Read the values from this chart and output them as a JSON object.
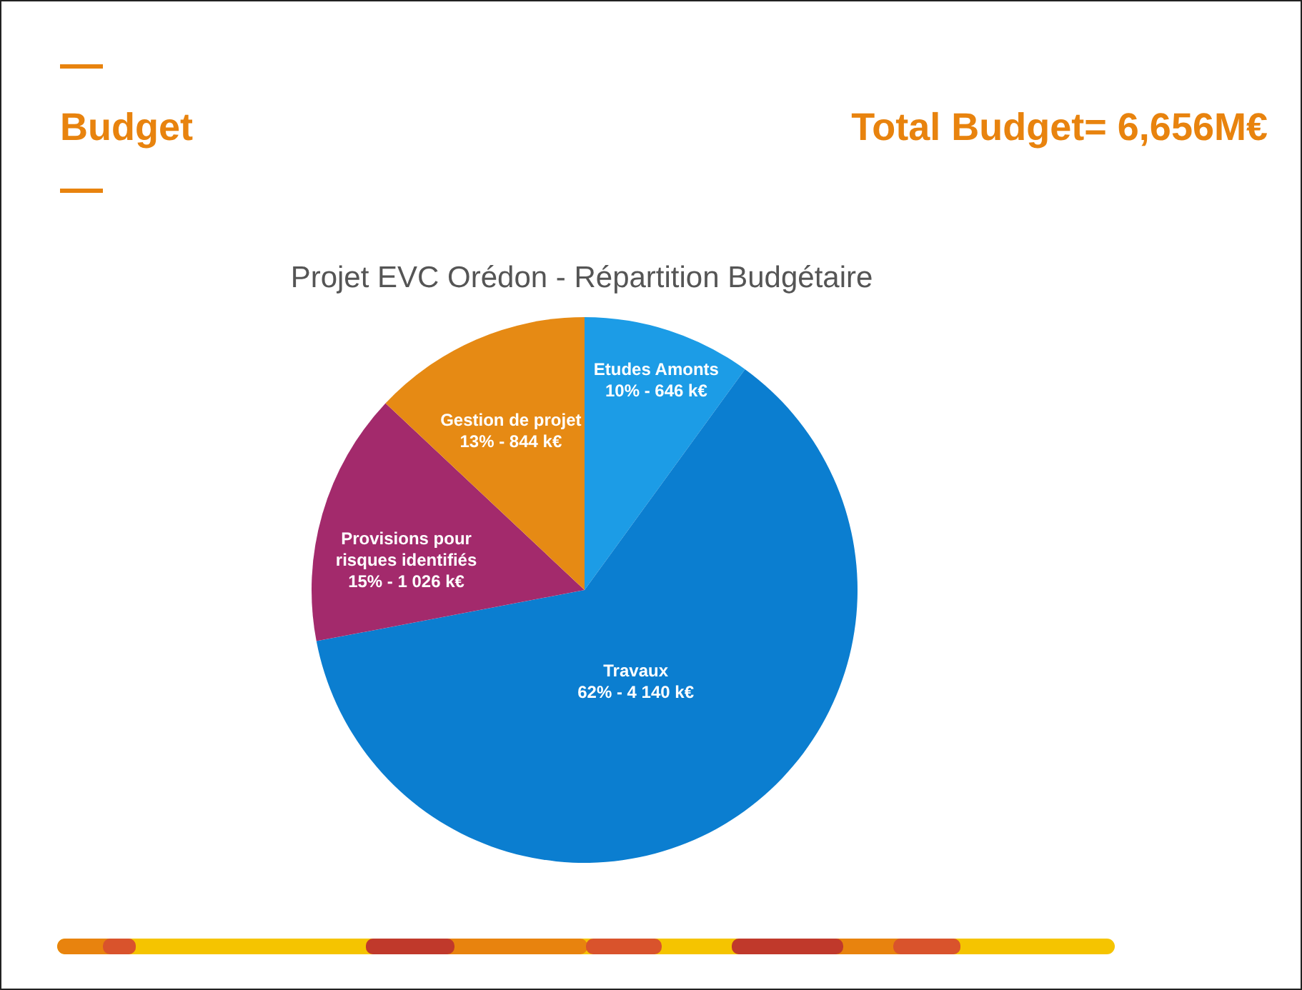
{
  "chart_data": {
    "type": "pie",
    "title": "Budget",
    "subtitle": "Projet EVC Orédon - Répartition Budgétaire",
    "annotations": [
      "Total Budget= 6,656M€"
    ],
    "categories": [
      "Etudes Amonts",
      "Travaux",
      "Provisions pour risques identifiés",
      "Gestion de projet"
    ],
    "values": [
      10,
      62,
      15,
      13
    ],
    "colors": [
      "#1c9ce6",
      "#0b7ed0",
      "#a32a6c",
      "#e68a14"
    ],
    "value_labels": [
      "10% - 646 k€",
      "62% - 4 140 k€",
      "15% - 1 026 k€",
      "13% - 844 k€"
    ]
  }
}
